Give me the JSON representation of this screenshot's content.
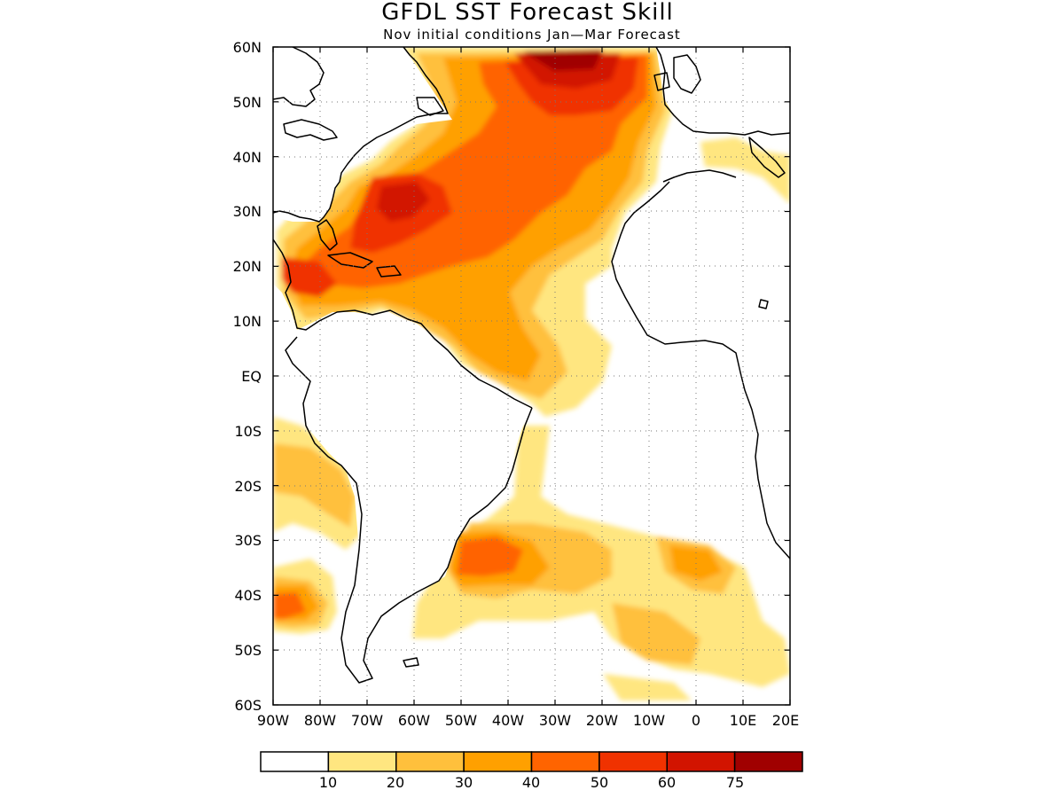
{
  "title": "GFDL SST Forecast Skill",
  "subtitle": "Nov initial conditions  Jan—Mar Forecast",
  "map": {
    "lon_labels": [
      "90W",
      "80W",
      "70W",
      "60W",
      "50W",
      "40W",
      "30W",
      "20W",
      "10W",
      "0",
      "10E",
      "20E"
    ],
    "lat_labels": [
      "60N",
      "50N",
      "40N",
      "30N",
      "20N",
      "10N",
      "EQ",
      "10S",
      "20S",
      "30S",
      "40S",
      "50S",
      "60S"
    ],
    "lon_range": [
      -90,
      20
    ],
    "lat_range": [
      -60,
      60
    ],
    "grid": true
  },
  "colorbar": {
    "labels": [
      "10",
      "20",
      "30",
      "40",
      "50",
      "60",
      "75"
    ],
    "colors": [
      "#ffffff",
      "#ffe680",
      "#ffc03c",
      "#ffa000",
      "#ff6400",
      "#f03200",
      "#d21400",
      "#a00000"
    ]
  }
}
